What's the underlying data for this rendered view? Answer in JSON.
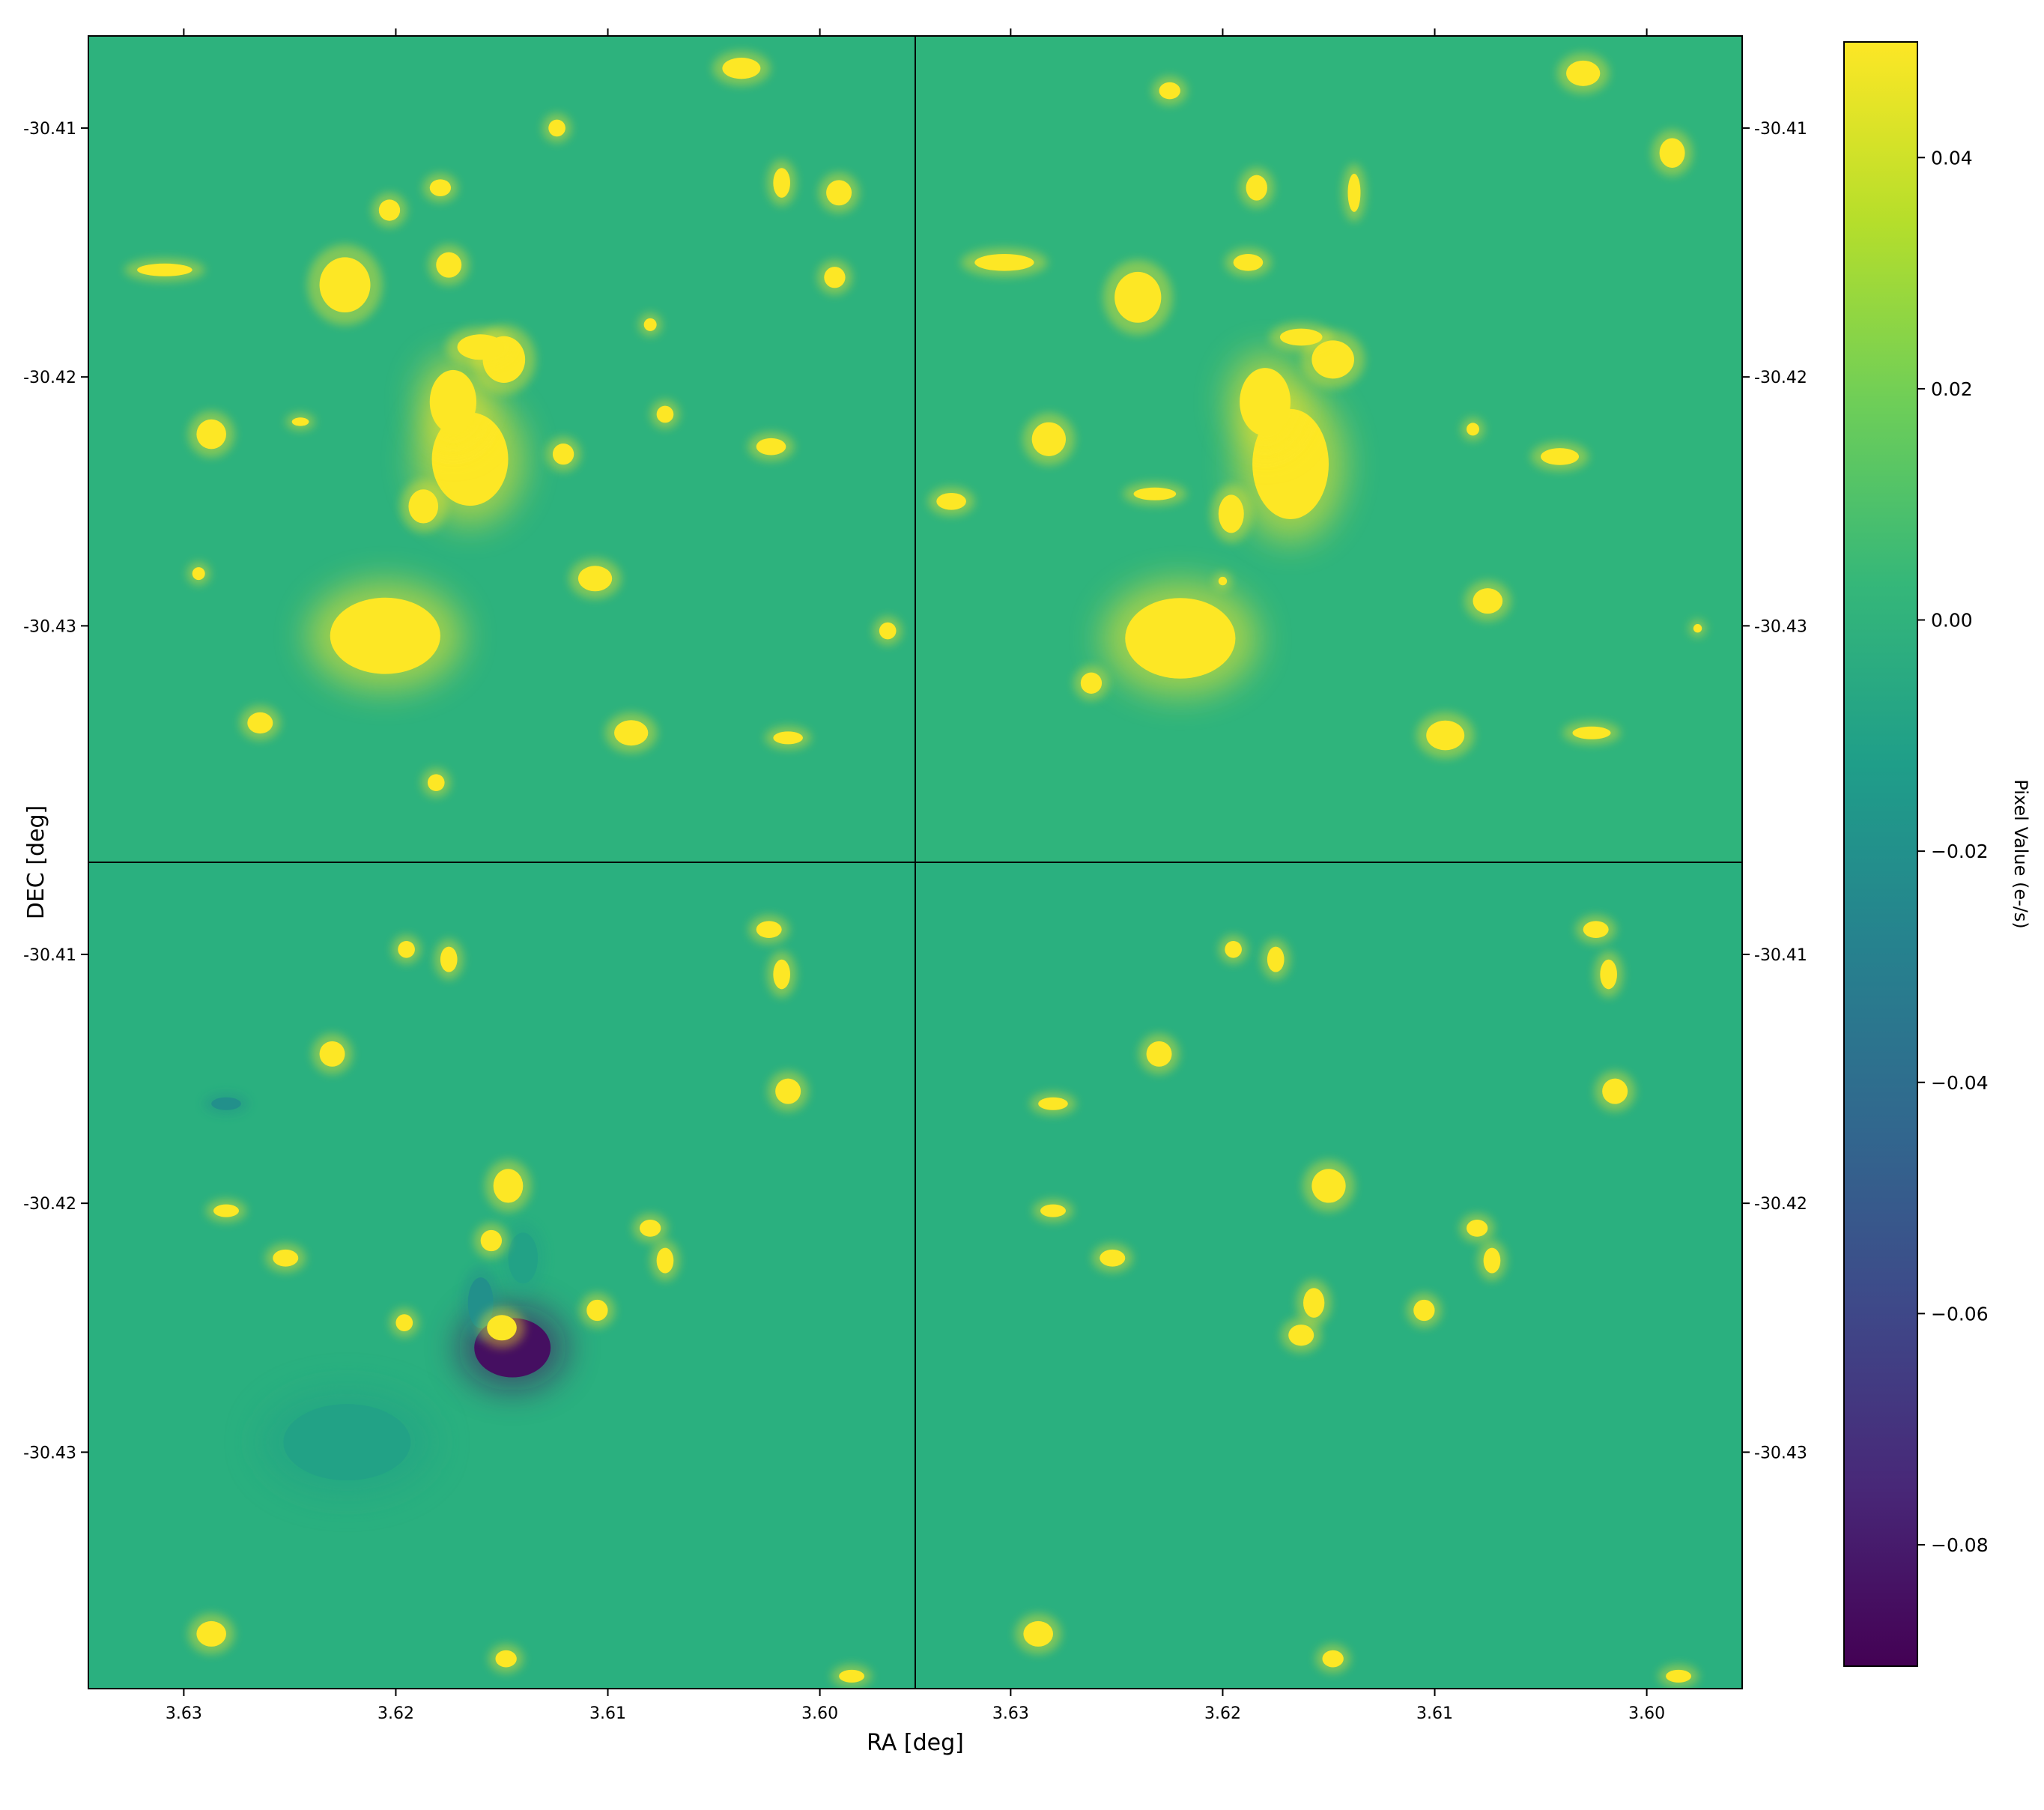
{
  "figure": {
    "xlabel": "RA [deg]",
    "ylabel": "DEC [deg]",
    "colorbar_label": "Pixel Value (e-/s)"
  },
  "chart_data": [
    {
      "type": "heatmap",
      "panel": "top-left",
      "colormap": "viridis",
      "x_ticks": [],
      "y_ticks": [
        -30.41,
        -30.42,
        -30.43
      ],
      "y_tick_labels": [
        "-30.41",
        "-30.42",
        "-30.43"
      ],
      "y_tick_side": "left",
      "xlim": [
        3.6345,
        3.5955
      ],
      "ylim": [
        -30.4395,
        -30.4063
      ],
      "sources": [
        {
          "ra": 3.6165,
          "dec": -30.4233,
          "a": 0.0018,
          "b": 0.0022,
          "v": 0.06
        },
        {
          "ra": 3.6173,
          "dec": -30.421,
          "a": 0.0011,
          "b": 0.0015,
          "v": 0.06
        },
        {
          "ra": 3.6205,
          "dec": -30.4304,
          "a": 0.0026,
          "b": 0.0018,
          "v": 0.06
        },
        {
          "ra": 3.6224,
          "dec": -30.4163,
          "a": 0.0012,
          "b": 0.0013,
          "v": 0.06
        },
        {
          "ra": 3.6149,
          "dec": -30.4193,
          "a": 0.001,
          "b": 0.0011,
          "v": 0.06
        },
        {
          "ra": 3.616,
          "dec": -30.4188,
          "a": 0.0011,
          "b": 0.0006,
          "v": 0.06
        },
        {
          "ra": 3.6037,
          "dec": -30.4076,
          "a": 0.0009,
          "b": 0.0005,
          "v": 0.06
        },
        {
          "ra": 3.6309,
          "dec": -30.4157,
          "a": 0.0013,
          "b": 0.0003,
          "v": 0.06
        },
        {
          "ra": 3.6287,
          "dec": -30.4223,
          "a": 0.0007,
          "b": 0.0007,
          "v": 0.06
        },
        {
          "ra": 3.6245,
          "dec": -30.4218,
          "a": 0.0004,
          "b": 0.0002,
          "v": 0.06
        },
        {
          "ra": 3.6073,
          "dec": -30.4215,
          "a": 0.0004,
          "b": 0.0004,
          "v": 0.06
        },
        {
          "ra": 3.6023,
          "dec": -30.4228,
          "a": 0.0007,
          "b": 0.0004,
          "v": 0.06
        },
        {
          "ra": 3.6187,
          "dec": -30.4252,
          "a": 0.0007,
          "b": 0.0008,
          "v": 0.06
        },
        {
          "ra": 3.6106,
          "dec": -30.4281,
          "a": 0.0008,
          "b": 0.0006,
          "v": 0.06
        },
        {
          "ra": 3.6121,
          "dec": -30.4231,
          "a": 0.0005,
          "b": 0.0005,
          "v": 0.06
        },
        {
          "ra": 3.6203,
          "dec": -30.4133,
          "a": 0.0005,
          "b": 0.0005,
          "v": 0.06
        },
        {
          "ra": 3.6175,
          "dec": -30.4155,
          "a": 0.0006,
          "b": 0.0006,
          "v": 0.06
        },
        {
          "ra": 3.6179,
          "dec": -30.4124,
          "a": 0.0005,
          "b": 0.0004,
          "v": 0.06
        },
        {
          "ra": 3.5991,
          "dec": -30.4126,
          "a": 0.0006,
          "b": 0.0006,
          "v": 0.06
        },
        {
          "ra": 3.5993,
          "dec": -30.416,
          "a": 0.0005,
          "b": 0.0005,
          "v": 0.06
        },
        {
          "ra": 3.6018,
          "dec": -30.4122,
          "a": 0.0004,
          "b": 0.0007,
          "v": 0.06
        },
        {
          "ra": 3.6015,
          "dec": -30.4345,
          "a": 0.0007,
          "b": 0.0003,
          "v": 0.06
        },
        {
          "ra": 3.6089,
          "dec": -30.4343,
          "a": 0.0008,
          "b": 0.0006,
          "v": 0.06
        },
        {
          "ra": 3.6264,
          "dec": -30.4339,
          "a": 0.0006,
          "b": 0.0005,
          "v": 0.06
        },
        {
          "ra": 3.6181,
          "dec": -30.4363,
          "a": 0.0004,
          "b": 0.0004,
          "v": 0.06
        },
        {
          "ra": 3.6124,
          "dec": -30.41,
          "a": 0.0004,
          "b": 0.0004,
          "v": 0.06
        },
        {
          "ra": 3.608,
          "dec": -30.4179,
          "a": 0.0003,
          "b": 0.0003,
          "v": 0.06
        },
        {
          "ra": 3.5968,
          "dec": -30.4302,
          "a": 0.0004,
          "b": 0.0004,
          "v": 0.06
        },
        {
          "ra": 3.6293,
          "dec": -30.4279,
          "a": 0.0003,
          "b": 0.0003,
          "v": 0.06
        }
      ]
    },
    {
      "type": "heatmap",
      "panel": "top-right",
      "colormap": "viridis",
      "x_ticks": [],
      "y_ticks": [
        -30.41,
        -30.42,
        -30.43
      ],
      "y_tick_labels": [
        "-30.41",
        "-30.42",
        "-30.43"
      ],
      "y_tick_side": "right",
      "xlim": [
        3.6345,
        3.5955
      ],
      "ylim": [
        -30.4395,
        -30.4063
      ],
      "sources": [
        {
          "ra": 3.6168,
          "dec": -30.4235,
          "a": 0.0018,
          "b": 0.0026,
          "v": 0.06
        },
        {
          "ra": 3.618,
          "dec": -30.421,
          "a": 0.0012,
          "b": 0.0016,
          "v": 0.06
        },
        {
          "ra": 3.622,
          "dec": -30.4305,
          "a": 0.0026,
          "b": 0.0019,
          "v": 0.06
        },
        {
          "ra": 3.624,
          "dec": -30.4168,
          "a": 0.0011,
          "b": 0.0012,
          "v": 0.06
        },
        {
          "ra": 3.6148,
          "dec": -30.4193,
          "a": 0.001,
          "b": 0.0009,
          "v": 0.06
        },
        {
          "ra": 3.6163,
          "dec": -30.4184,
          "a": 0.001,
          "b": 0.0004,
          "v": 0.06
        },
        {
          "ra": 3.6303,
          "dec": -30.4154,
          "a": 0.0014,
          "b": 0.0004,
          "v": 0.06
        },
        {
          "ra": 3.6282,
          "dec": -30.4225,
          "a": 0.0008,
          "b": 0.0008,
          "v": 0.06
        },
        {
          "ra": 3.603,
          "dec": -30.4078,
          "a": 0.0008,
          "b": 0.0006,
          "v": 0.06
        },
        {
          "ra": 3.5988,
          "dec": -30.411,
          "a": 0.0006,
          "b": 0.0007,
          "v": 0.06
        },
        {
          "ra": 3.6184,
          "dec": -30.4124,
          "a": 0.0005,
          "b": 0.0006,
          "v": 0.06
        },
        {
          "ra": 3.6138,
          "dec": -30.4126,
          "a": 0.0003,
          "b": 0.0009,
          "v": 0.06
        },
        {
          "ra": 3.6188,
          "dec": -30.4154,
          "a": 0.0007,
          "b": 0.0004,
          "v": 0.06
        },
        {
          "ra": 3.6225,
          "dec": -30.4085,
          "a": 0.0005,
          "b": 0.0004,
          "v": 0.06
        },
        {
          "ra": 3.6196,
          "dec": -30.4255,
          "a": 0.0006,
          "b": 0.0009,
          "v": 0.06
        },
        {
          "ra": 3.6041,
          "dec": -30.4232,
          "a": 0.0009,
          "b": 0.0004,
          "v": 0.06
        },
        {
          "ra": 3.6075,
          "dec": -30.429,
          "a": 0.0007,
          "b": 0.0006,
          "v": 0.06
        },
        {
          "ra": 3.6095,
          "dec": -30.4344,
          "a": 0.0009,
          "b": 0.0007,
          "v": 0.06
        },
        {
          "ra": 3.6026,
          "dec": -30.4343,
          "a": 0.0009,
          "b": 0.0003,
          "v": 0.06
        },
        {
          "ra": 3.6232,
          "dec": -30.4247,
          "a": 0.001,
          "b": 0.0003,
          "v": 0.06
        },
        {
          "ra": 3.6328,
          "dec": -30.425,
          "a": 0.0007,
          "b": 0.0004,
          "v": 0.06
        },
        {
          "ra": 3.6262,
          "dec": -30.4323,
          "a": 0.0005,
          "b": 0.0005,
          "v": 0.06
        },
        {
          "ra": 3.6082,
          "dec": -30.4221,
          "a": 0.0003,
          "b": 0.0003,
          "v": 0.06
        },
        {
          "ra": 3.62,
          "dec": -30.4282,
          "a": 0.0002,
          "b": 0.0002,
          "v": 0.06
        },
        {
          "ra": 3.5976,
          "dec": -30.4301,
          "a": 0.0002,
          "b": 0.0002,
          "v": 0.06
        }
      ]
    },
    {
      "type": "heatmap",
      "panel": "bottom-left",
      "colormap": "viridis",
      "x_ticks": [
        3.63,
        3.62,
        3.61,
        3.6
      ],
      "x_tick_labels": [
        "3.63",
        "3.62",
        "3.61",
        "3.60"
      ],
      "y_ticks": [
        -30.41,
        -30.42,
        -30.43
      ],
      "y_tick_labels": [
        "-30.41",
        "-30.42",
        "-30.43"
      ],
      "y_tick_side": "left",
      "xlim": [
        3.6345,
        3.5955
      ],
      "ylim": [
        -30.4395,
        -30.4063
      ],
      "sources": [
        {
          "ra": 3.6145,
          "dec": -30.4258,
          "a": 0.0018,
          "b": 0.0014,
          "v": -0.085
        },
        {
          "ra": 3.616,
          "dec": -30.424,
          "a": 0.0006,
          "b": 0.0012,
          "v": -0.02
        },
        {
          "ra": 3.614,
          "dec": -30.4222,
          "a": 0.0007,
          "b": 0.0012,
          "v": -0.01
        },
        {
          "ra": 3.6223,
          "dec": -30.4296,
          "a": 0.003,
          "b": 0.0018,
          "v": -0.01
        },
        {
          "ra": 3.615,
          "dec": -30.425,
          "a": 0.0007,
          "b": 0.0006,
          "v": 0.06
        },
        {
          "ra": 3.6147,
          "dec": -30.4193,
          "a": 0.0007,
          "b": 0.0008,
          "v": 0.06
        },
        {
          "ra": 3.6287,
          "dec": -30.4373,
          "a": 0.0007,
          "b": 0.0006,
          "v": 0.06
        },
        {
          "ra": 3.6015,
          "dec": -30.4155,
          "a": 0.0006,
          "b": 0.0006,
          "v": 0.06
        },
        {
          "ra": 3.6018,
          "dec": -30.4108,
          "a": 0.0004,
          "b": 0.0007,
          "v": 0.06
        },
        {
          "ra": 3.6195,
          "dec": -30.4098,
          "a": 0.0004,
          "b": 0.0004,
          "v": 0.06
        },
        {
          "ra": 3.6175,
          "dec": -30.4102,
          "a": 0.0004,
          "b": 0.0006,
          "v": 0.06
        },
        {
          "ra": 3.623,
          "dec": -30.414,
          "a": 0.0006,
          "b": 0.0006,
          "v": 0.06
        },
        {
          "ra": 3.6155,
          "dec": -30.4215,
          "a": 0.0005,
          "b": 0.0005,
          "v": 0.06
        },
        {
          "ra": 3.608,
          "dec": -30.421,
          "a": 0.0005,
          "b": 0.0004,
          "v": 0.06
        },
        {
          "ra": 3.6073,
          "dec": -30.4223,
          "a": 0.0004,
          "b": 0.0006,
          "v": 0.06
        },
        {
          "ra": 3.6024,
          "dec": -30.409,
          "a": 0.0006,
          "b": 0.0004,
          "v": 0.06
        },
        {
          "ra": 3.6105,
          "dec": -30.4243,
          "a": 0.0005,
          "b": 0.0005,
          "v": 0.06
        },
        {
          "ra": 3.6148,
          "dec": -30.4383,
          "a": 0.0005,
          "b": 0.0004,
          "v": 0.06
        },
        {
          "ra": 3.6196,
          "dec": -30.4248,
          "a": 0.0004,
          "b": 0.0004,
          "v": 0.06
        },
        {
          "ra": 3.6252,
          "dec": -30.4222,
          "a": 0.0006,
          "b": 0.0004,
          "v": 0.06
        },
        {
          "ra": 3.628,
          "dec": -30.4203,
          "a": 0.0006,
          "b": 0.0003,
          "v": 0.06
        },
        {
          "ra": 3.5985,
          "dec": -30.439,
          "a": 0.0006,
          "b": 0.0003,
          "v": 0.06
        },
        {
          "ra": 3.628,
          "dec": -30.416,
          "a": 0.0007,
          "b": 0.0003,
          "v": -0.02
        }
      ]
    },
    {
      "type": "heatmap",
      "panel": "bottom-right",
      "colormap": "viridis",
      "x_ticks": [
        3.63,
        3.62,
        3.61,
        3.6
      ],
      "x_tick_labels": [
        "3.63",
        "3.62",
        "3.61",
        "3.60"
      ],
      "y_ticks": [
        -30.41,
        -30.42,
        -30.43
      ],
      "y_tick_labels": [
        "-30.41",
        "-30.42",
        "-30.43"
      ],
      "y_tick_side": "right",
      "xlim": [
        3.6345,
        3.5955
      ],
      "ylim": [
        -30.4395,
        -30.4063
      ],
      "sources": [
        {
          "ra": 3.615,
          "dec": -30.4193,
          "a": 0.0008,
          "b": 0.0008,
          "v": 0.06
        },
        {
          "ra": 3.6157,
          "dec": -30.424,
          "a": 0.0005,
          "b": 0.0007,
          "v": 0.06
        },
        {
          "ra": 3.6287,
          "dec": -30.4373,
          "a": 0.0007,
          "b": 0.0006,
          "v": 0.06
        },
        {
          "ra": 3.6015,
          "dec": -30.4155,
          "a": 0.0006,
          "b": 0.0006,
          "v": 0.06
        },
        {
          "ra": 3.6018,
          "dec": -30.4108,
          "a": 0.0004,
          "b": 0.0007,
          "v": 0.06
        },
        {
          "ra": 3.6195,
          "dec": -30.4098,
          "a": 0.0004,
          "b": 0.0004,
          "v": 0.06
        },
        {
          "ra": 3.6175,
          "dec": -30.4102,
          "a": 0.0004,
          "b": 0.0006,
          "v": 0.06
        },
        {
          "ra": 3.623,
          "dec": -30.414,
          "a": 0.0006,
          "b": 0.0006,
          "v": 0.06
        },
        {
          "ra": 3.608,
          "dec": -30.421,
          "a": 0.0005,
          "b": 0.0004,
          "v": 0.06
        },
        {
          "ra": 3.6073,
          "dec": -30.4223,
          "a": 0.0004,
          "b": 0.0006,
          "v": 0.06
        },
        {
          "ra": 3.6024,
          "dec": -30.409,
          "a": 0.0006,
          "b": 0.0004,
          "v": 0.06
        },
        {
          "ra": 3.6105,
          "dec": -30.4243,
          "a": 0.0005,
          "b": 0.0005,
          "v": 0.06
        },
        {
          "ra": 3.6148,
          "dec": -30.4383,
          "a": 0.0005,
          "b": 0.0004,
          "v": 0.06
        },
        {
          "ra": 3.6252,
          "dec": -30.4222,
          "a": 0.0006,
          "b": 0.0004,
          "v": 0.06
        },
        {
          "ra": 3.628,
          "dec": -30.4203,
          "a": 0.0006,
          "b": 0.0003,
          "v": 0.06
        },
        {
          "ra": 3.5985,
          "dec": -30.439,
          "a": 0.0006,
          "b": 0.0003,
          "v": 0.06
        },
        {
          "ra": 3.6163,
          "dec": -30.4253,
          "a": 0.0006,
          "b": 0.0005,
          "v": 0.06
        },
        {
          "ra": 3.628,
          "dec": -30.416,
          "a": 0.0007,
          "b": 0.0003,
          "v": 0.06
        }
      ]
    },
    {
      "type": "colorbar",
      "label": "Pixel Value (e-/s)",
      "colormap": "viridis",
      "vmin": -0.0905,
      "vmax": 0.05,
      "ticks": [
        0.04,
        0.02,
        0.0,
        -0.02,
        -0.04,
        -0.06,
        -0.08
      ],
      "tick_labels": [
        "0.04",
        "0.02",
        "0.00",
        "−0.02",
        "−0.04",
        "−0.06",
        "−0.08"
      ]
    }
  ]
}
